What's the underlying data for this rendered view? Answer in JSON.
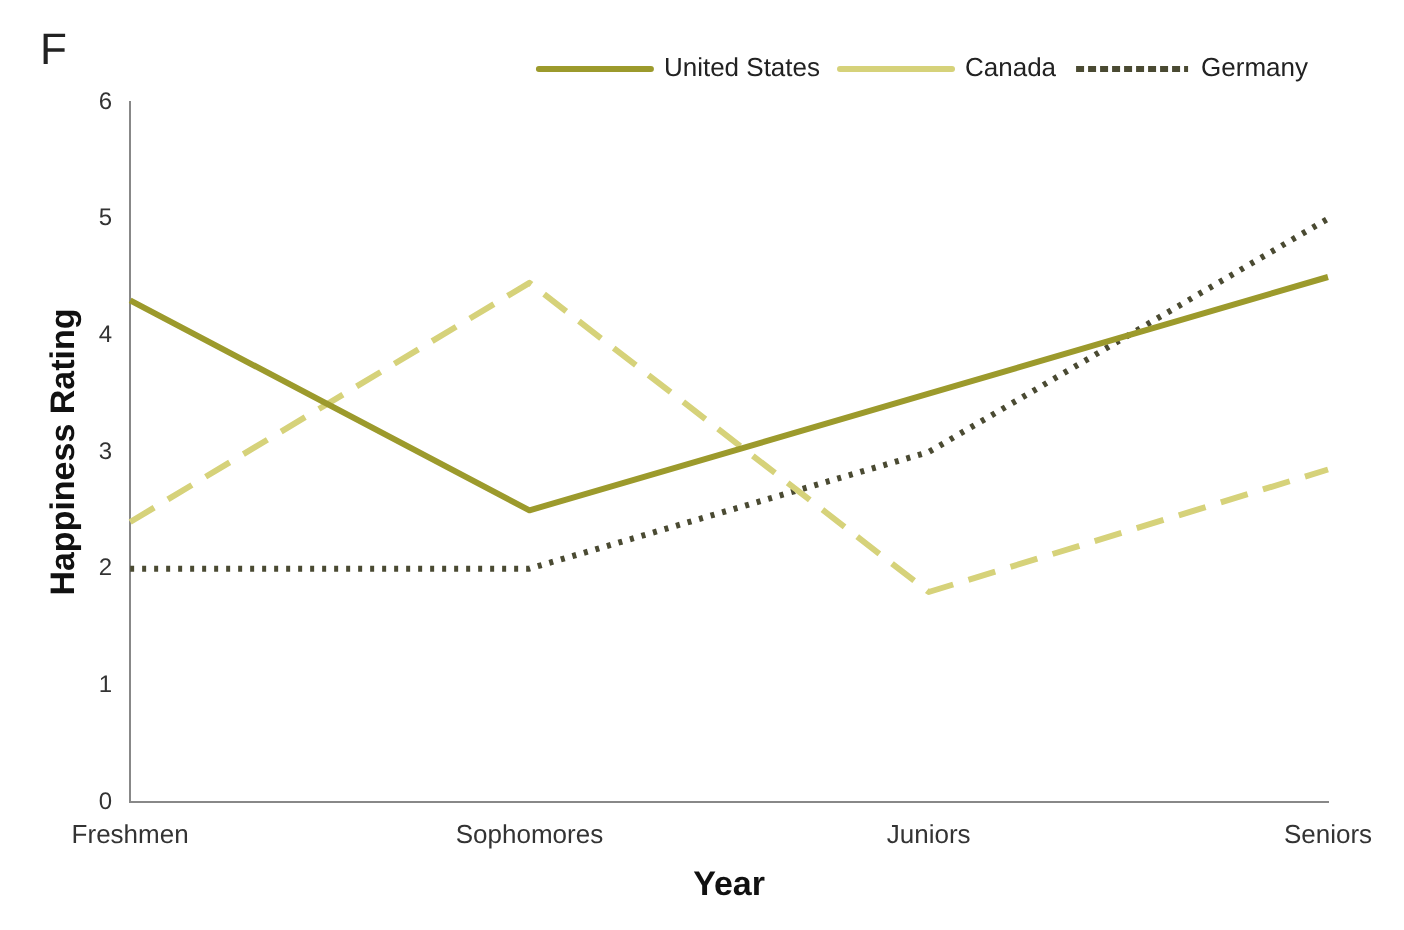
{
  "chart_data": {
    "type": "line",
    "xlabel": "Year",
    "ylabel": "Happiness Rating",
    "annotations": [
      "F"
    ],
    "categories": [
      "Freshmen",
      "Sophomores",
      "Juniors",
      "Seniors"
    ],
    "series": [
      {
        "name": "United States",
        "color": "#9c9a2c",
        "values": [
          4.3,
          2.5,
          3.5,
          4.5
        ],
        "line_style": "solid"
      },
      {
        "name": "Canada",
        "color": "#d6d27a",
        "values": [
          2.4,
          4.45,
          1.8,
          2.85
        ],
        "line_style": "dashed"
      },
      {
        "name": "Germany",
        "color": "#4a4a32",
        "values": [
          2,
          2,
          3,
          5
        ],
        "line_style": "dotted"
      }
    ],
    "ylim": [
      0,
      6
    ],
    "yticks": [
      0,
      1,
      2,
      3,
      4,
      5,
      6
    ],
    "grid": false,
    "legend": "top right",
    "marker": "none"
  }
}
